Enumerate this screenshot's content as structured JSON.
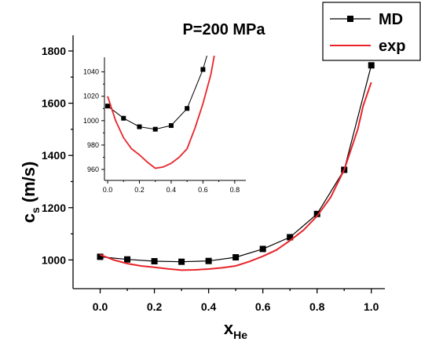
{
  "chart_data": {
    "type": "line",
    "title": "P=200 MPa",
    "xlabel": "x",
    "xlabel_sub": "He",
    "ylabel": "c",
    "ylabel_sub": "s",
    "ylabel_unit": "(m/s)",
    "xlim": [
      -0.1,
      1.05
    ],
    "ylim": [
      890,
      1860
    ],
    "xticks": [
      "0.0",
      "0.2",
      "0.4",
      "0.6",
      "0.8",
      "1.0"
    ],
    "yticks": [
      "1000",
      "1200",
      "1400",
      "1600",
      "1800"
    ],
    "legend": {
      "position": "top-right"
    },
    "series": [
      {
        "name": "MD",
        "color": "#000000",
        "marker": "square",
        "x": [
          0.0,
          0.1,
          0.2,
          0.3,
          0.4,
          0.5,
          0.6,
          0.7,
          0.8,
          0.9,
          1.0
        ],
        "y": [
          1012,
          1002,
          995,
          993,
          996,
          1010,
          1042,
          1087,
          1176,
          1345,
          1745
        ]
      },
      {
        "name": "exp",
        "color": "#e8242a",
        "marker": "none",
        "x": [
          0.0,
          0.05,
          0.1,
          0.15,
          0.2,
          0.25,
          0.3,
          0.35,
          0.4,
          0.45,
          0.5,
          0.55,
          0.6,
          0.65,
          0.7,
          0.75,
          0.8,
          0.85,
          0.9,
          0.95,
          0.97,
          1.0
        ],
        "y": [
          1020,
          1000,
          986,
          977,
          972,
          966,
          961,
          962,
          965,
          970,
          977,
          994,
          1014,
          1038,
          1074,
          1114,
          1168,
          1240,
          1345,
          1500,
          1590,
          1680
        ]
      }
    ],
    "inset": {
      "xlim": [
        -0.02,
        0.87
      ],
      "ylim": [
        951,
        1052
      ],
      "xticks": [
        "0.0",
        "0.2",
        "0.4",
        "0.6",
        "0.8"
      ],
      "yticks": [
        "960",
        "980",
        "1000",
        "1020",
        "1040"
      ]
    }
  }
}
